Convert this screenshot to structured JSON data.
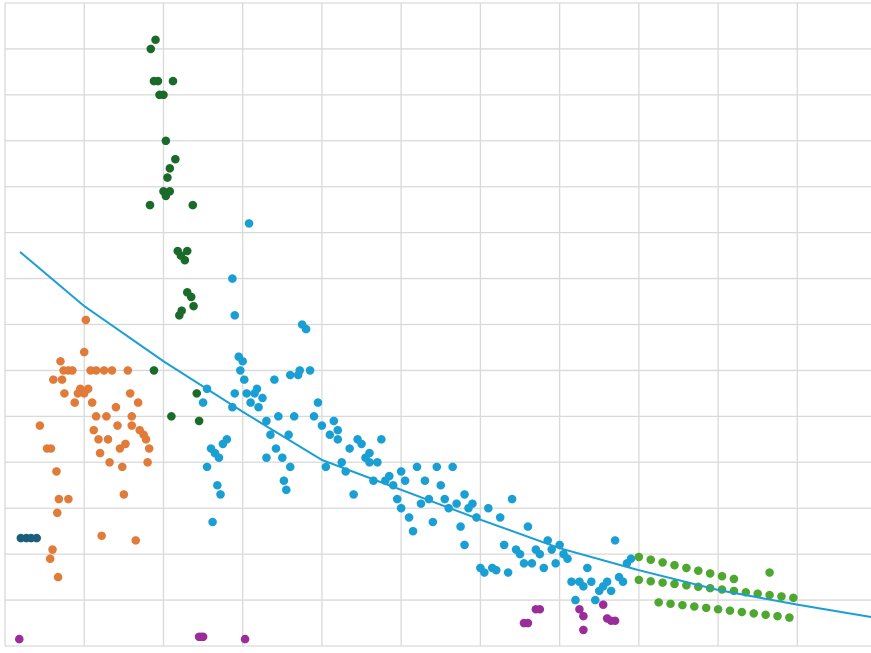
{
  "chart_data": {
    "type": "scatter",
    "xlim": [
      0,
      10.93
    ],
    "ylim": [
      0,
      14
    ],
    "xticks": [
      0,
      1,
      2,
      3,
      4,
      5,
      6,
      7,
      8,
      9,
      10
    ],
    "yticks": [
      0,
      1,
      2,
      3,
      4,
      5,
      6,
      7,
      8,
      9,
      10,
      11,
      12,
      13,
      14
    ],
    "grid": true,
    "series": [
      {
        "color": "#e07b39",
        "x": [
          0.44,
          0.53,
          0.58,
          0.61,
          0.65,
          0.68,
          0.66,
          0.8,
          0.57,
          0.6,
          0.67,
          0.7,
          0.72,
          0.74,
          0.75,
          0.8,
          0.85,
          0.88,
          0.92,
          0.95,
          1.0,
          1.0,
          1.02,
          1.05,
          1.08,
          1.1,
          1.12,
          1.15,
          1.18,
          1.2,
          1.25,
          1.28,
          1.3,
          1.32,
          1.35,
          1.4,
          1.42,
          1.45,
          1.48,
          1.5,
          1.52,
          1.55,
          1.58,
          1.6,
          1.65,
          1.68,
          1.7,
          1.75,
          1.78,
          1.8,
          1.82,
          1.22,
          1.6,
          1.15
        ],
        "values": [
          4.8,
          4.3,
          4.3,
          5.8,
          3.8,
          3.2,
          2.9,
          3.2,
          1.9,
          2.1,
          1.5,
          6.2,
          5.8,
          6.0,
          5.5,
          6.0,
          6.0,
          5.3,
          5.5,
          5.6,
          5.5,
          6.4,
          7.1,
          5.6,
          6.0,
          5.3,
          4.7,
          6.0,
          4.5,
          4.2,
          6.0,
          5.0,
          4.5,
          4.0,
          6.0,
          5.2,
          4.8,
          4.3,
          3.9,
          3.3,
          4.4,
          6.0,
          5.5,
          5.0,
          2.3,
          5.3,
          4.7,
          4.6,
          4.5,
          4.0,
          4.3,
          2.4,
          4.8,
          5.0
        ]
      },
      {
        "color": "#1b5e7b",
        "x": [
          0.2,
          0.27,
          0.33,
          0.4
        ],
        "values": [
          2.35,
          2.35,
          2.35,
          2.35
        ]
      },
      {
        "color": "#1a6b2a",
        "x": [
          1.84,
          1.9,
          1.88,
          1.93,
          1.95,
          2.0,
          2.12,
          2.03,
          2.15,
          2.05,
          2.08,
          2.0,
          2.03,
          2.08,
          1.83,
          2.37,
          2.18,
          2.22,
          2.3,
          2.27,
          2.3,
          2.35,
          2.38,
          2.23,
          2.2,
          1.88,
          2.42,
          2.1,
          2.45
        ],
        "values": [
          13.0,
          13.2,
          12.3,
          12.3,
          12.0,
          12.0,
          12.3,
          11.0,
          10.6,
          10.2,
          10.4,
          9.9,
          9.8,
          9.9,
          9.6,
          9.6,
          8.6,
          8.5,
          8.6,
          8.4,
          7.7,
          7.6,
          7.4,
          7.3,
          7.2,
          6.0,
          5.5,
          5.0,
          4.9
        ]
      },
      {
        "color": "#1a9fd4",
        "x": [
          2.55,
          2.6,
          2.62,
          2.65,
          2.68,
          2.7,
          2.72,
          2.75,
          2.5,
          2.55,
          2.8,
          2.87,
          2.9,
          2.87,
          2.9,
          2.95,
          2.97,
          3.0,
          3.02,
          3.05,
          3.08,
          3.1,
          3.15,
          3.18,
          3.2,
          3.25,
          3.3,
          3.35,
          3.4,
          3.42,
          3.45,
          3.5,
          3.52,
          3.55,
          3.58,
          3.6,
          3.65,
          3.7,
          3.72,
          3.75,
          3.8,
          3.85,
          3.9,
          3.95,
          4.0,
          4.05,
          4.1,
          4.15,
          4.2,
          4.25,
          4.3,
          4.35,
          4.4,
          4.45,
          4.5,
          4.55,
          4.6,
          4.65,
          4.7,
          4.75,
          4.8,
          4.85,
          4.9,
          4.95,
          5.0,
          5.05,
          5.1,
          5.15,
          5.2,
          5.25,
          5.3,
          5.35,
          5.4,
          5.45,
          5.5,
          5.55,
          5.6,
          5.65,
          5.7,
          5.75,
          5.8,
          5.85,
          5.9,
          5.95,
          6.0,
          6.05,
          6.1,
          6.15,
          6.2,
          6.25,
          6.3,
          6.35,
          6.4,
          6.45,
          6.5,
          6.55,
          6.6,
          6.65,
          6.7,
          6.75,
          6.8,
          6.85,
          6.9,
          6.95,
          7.0,
          7.05,
          7.1,
          7.15,
          7.2,
          7.25,
          7.3,
          7.35,
          7.4,
          7.45,
          7.5,
          7.55,
          7.6,
          7.65,
          7.7,
          7.75,
          7.8,
          7.85,
          7.9,
          3.6,
          4.2,
          5.0,
          5.8,
          4.6,
          3.3
        ],
        "values": [
          3.9,
          4.3,
          2.7,
          4.2,
          3.5,
          4.1,
          3.3,
          4.4,
          5.3,
          5.6,
          4.5,
          5.2,
          5.5,
          8.0,
          7.2,
          6.3,
          6.0,
          6.2,
          5.8,
          5.5,
          9.2,
          5.3,
          5.5,
          5.6,
          5.2,
          5.4,
          4.9,
          4.6,
          5.8,
          4.3,
          5.0,
          4.1,
          3.6,
          3.4,
          4.6,
          3.9,
          5.0,
          5.9,
          6.0,
          7.0,
          6.9,
          6.0,
          5.0,
          5.3,
          4.8,
          3.9,
          4.6,
          4.9,
          4.7,
          4.0,
          3.8,
          4.3,
          3.3,
          4.5,
          4.4,
          4.1,
          4.0,
          3.6,
          4.0,
          4.5,
          3.6,
          3.7,
          3.5,
          3.2,
          3.8,
          3.6,
          2.8,
          2.5,
          3.9,
          3.1,
          3.6,
          3.2,
          2.7,
          3.9,
          3.5,
          3.2,
          3.0,
          3.9,
          3.1,
          2.6,
          3.3,
          3.0,
          3.1,
          2.8,
          1.7,
          1.6,
          3.0,
          1.7,
          1.65,
          2.8,
          2.2,
          1.6,
          3.2,
          2.1,
          2.0,
          1.8,
          2.6,
          1.8,
          2.1,
          2.0,
          1.7,
          2.3,
          2.1,
          1.8,
          2.2,
          2.0,
          1.9,
          1.4,
          1.0,
          1.4,
          1.3,
          1.7,
          1.4,
          1.0,
          1.2,
          1.3,
          1.4,
          1.2,
          2.3,
          1.5,
          1.4,
          1.8,
          1.9,
          5.9,
          4.5,
          3.0,
          2.2,
          4.2,
          4.1
        ]
      },
      {
        "color": "#9b2d9b",
        "x": [
          0.18,
          2.45,
          2.48,
          2.5,
          3.03,
          6.55,
          6.6,
          6.7,
          6.75,
          7.25,
          7.3,
          7.3,
          7.55,
          7.6,
          7.65,
          7.7
        ],
        "values": [
          0.15,
          0.2,
          0.2,
          0.2,
          0.15,
          0.5,
          0.5,
          0.8,
          0.8,
          0.8,
          0.65,
          0.35,
          0.9,
          0.6,
          0.55,
          0.55
        ]
      },
      {
        "color": "#4ea72e",
        "x": [
          8.0,
          8.15,
          8.3,
          8.45,
          8.6,
          8.75,
          8.9,
          9.05,
          9.2,
          8.0,
          8.15,
          8.3,
          8.45,
          8.6,
          8.75,
          8.9,
          9.05,
          9.2,
          9.35,
          9.5,
          9.65,
          9.8,
          9.95,
          8.25,
          8.4,
          8.55,
          8.7,
          8.85,
          9.0,
          9.15,
          9.3,
          9.45,
          9.6,
          9.75,
          9.9,
          9.65
        ],
        "values": [
          1.94,
          1.88,
          1.82,
          1.76,
          1.7,
          1.64,
          1.58,
          1.52,
          1.46,
          1.44,
          1.41,
          1.38,
          1.35,
          1.32,
          1.29,
          1.26,
          1.23,
          1.2,
          1.17,
          1.14,
          1.11,
          1.08,
          1.05,
          0.95,
          0.92,
          0.89,
          0.86,
          0.83,
          0.8,
          0.77,
          0.74,
          0.71,
          0.68,
          0.65,
          0.62,
          1.6
        ]
      },
      {
        "type": "line",
        "color": "#1a9fd4",
        "x": [
          0.19,
          1,
          2,
          3,
          4,
          5,
          6,
          7,
          8,
          9,
          10,
          10.93
        ],
        "values": [
          8.58,
          7.4,
          6.2,
          5.1,
          4.05,
          3.4,
          2.75,
          2.13,
          1.65,
          1.22,
          0.9,
          0.63
        ]
      }
    ]
  }
}
